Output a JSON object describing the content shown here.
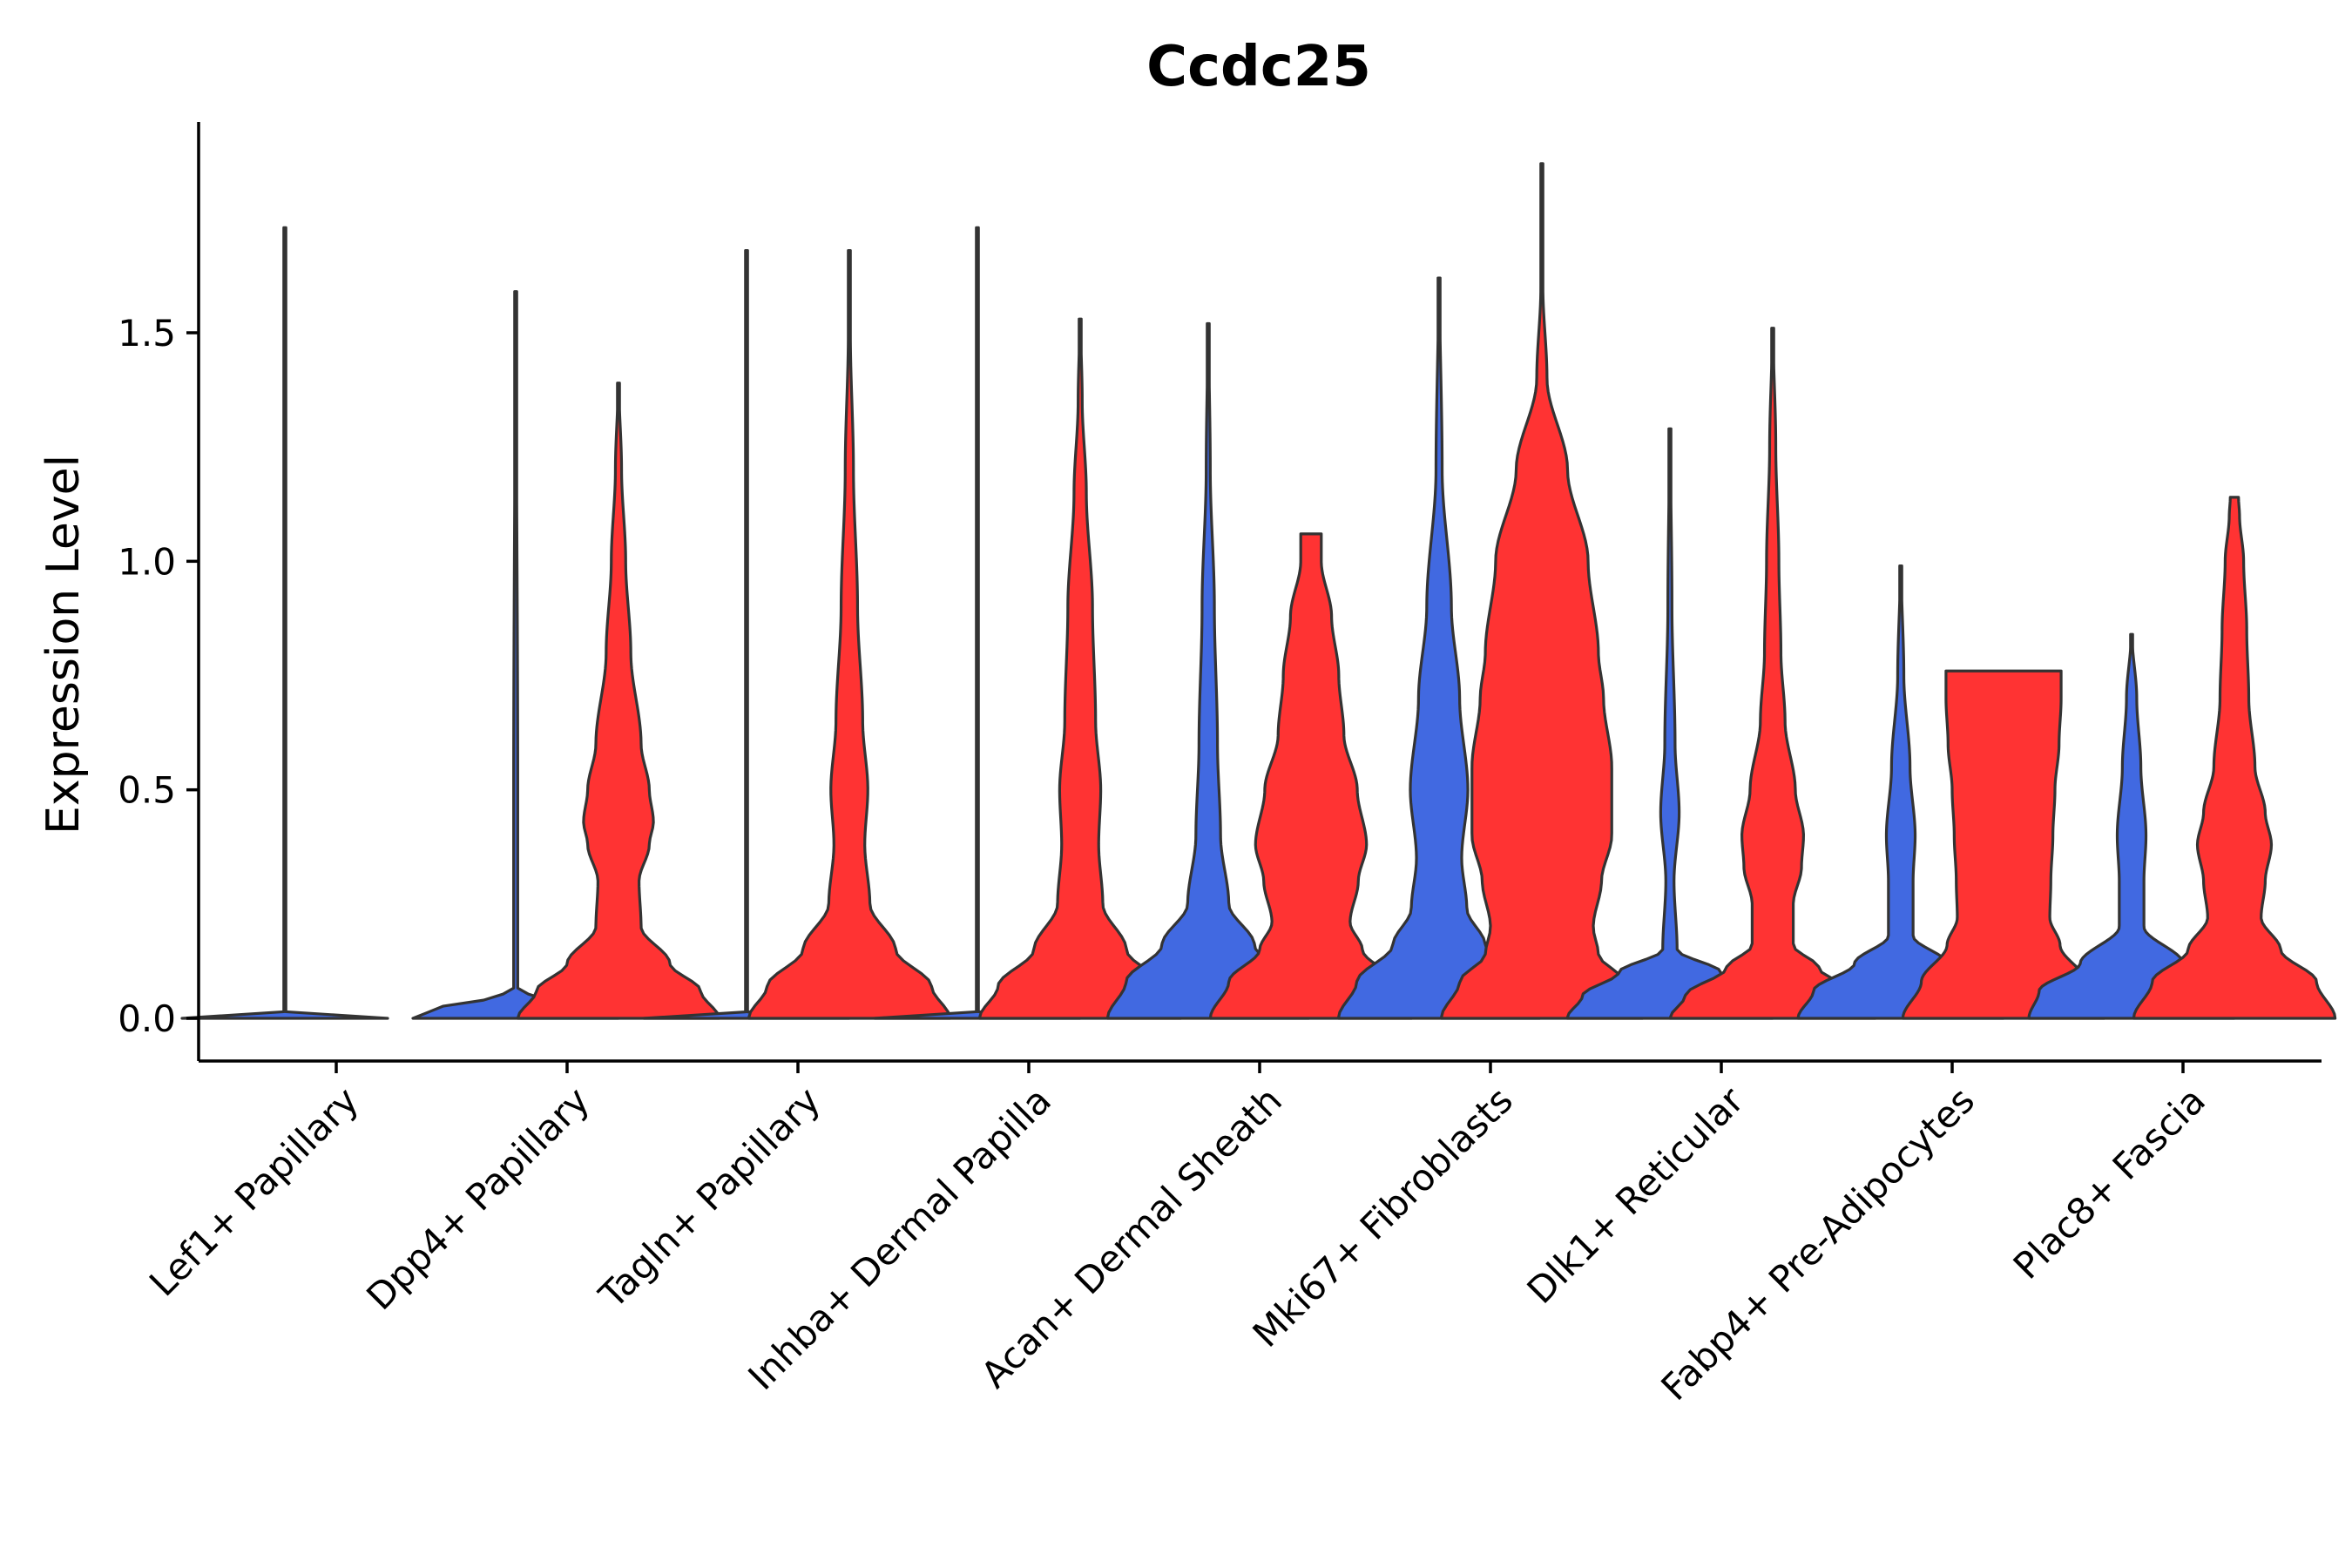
{
  "chart_data": {
    "type": "violin",
    "title": "Ccdc25",
    "xlabel": "",
    "ylabel": "Expression Level",
    "ylim": [
      -0.09,
      1.95
    ],
    "yticks": [
      0.0,
      0.5,
      1.0,
      1.5
    ],
    "ytick_labels": [
      "0.0",
      "0.5",
      "1.0",
      "1.5"
    ],
    "colors": {
      "blue_group": "#4169E1",
      "red_group": "#FF3333",
      "outline": "#333333"
    },
    "categories": [
      "Lef1+ Papillary",
      "Dpp4+ Papillary",
      "Tagln+ Papillary",
      "Inhba+ Dermal Papilla",
      "Acan+ Dermal Sheath",
      "Mki67+ Fibroblasts",
      "Dlk1+ Reticular",
      "Fabp4+ Pre-Adipocytes",
      "Plac8+ Fascia"
    ],
    "series": [
      {
        "name": "blue",
        "color": "#4169E1",
        "violins": [
          {
            "max": 1.73,
            "profile": [
              [
                0,
                1.0
              ],
              [
                0.005,
                0.25
              ],
              [
                0.01,
                0.004
              ],
              [
                1.73,
                0.004
              ]
            ]
          },
          {
            "max": 1.59,
            "profile": [
              [
                0,
                1.0
              ],
              [
                0.02,
                0.8
              ],
              [
                0.045,
                0.25
              ],
              [
                0.06,
                0.02
              ],
              [
                0.5,
                0.02
              ],
              [
                1.59,
                0.004
              ]
            ]
          },
          {
            "max": 1.68,
            "profile": [
              [
                0,
                1.0
              ],
              [
                0.005,
                0.3
              ],
              [
                0.01,
                0.004
              ],
              [
                1.68,
                0.004
              ]
            ]
          },
          {
            "max": 1.73,
            "profile": [
              [
                0,
                1.0
              ],
              [
                0.005,
                0.3
              ],
              [
                0.01,
                0.004
              ],
              [
                1.73,
                0.004
              ]
            ]
          },
          {
            "max": 1.52,
            "profile": [
              [
                0,
                0.98
              ],
              [
                0.08,
                0.8
              ],
              [
                0.16,
                0.45
              ],
              [
                0.25,
                0.2
              ],
              [
                0.4,
                0.12
              ],
              [
                0.6,
                0.09
              ],
              [
                0.9,
                0.06
              ],
              [
                1.2,
                0.02
              ],
              [
                1.52,
                0.004
              ]
            ]
          },
          {
            "max": 1.62,
            "profile": [
              [
                0,
                0.98
              ],
              [
                0.08,
                0.8
              ],
              [
                0.16,
                0.45
              ],
              [
                0.24,
                0.27
              ],
              [
                0.35,
                0.22
              ],
              [
                0.5,
                0.28
              ],
              [
                0.7,
                0.2
              ],
              [
                0.9,
                0.12
              ],
              [
                1.2,
                0.03
              ],
              [
                1.62,
                0.004
              ]
            ]
          },
          {
            "max": 1.29,
            "profile": [
              [
                0,
                1.0
              ],
              [
                0.05,
                0.85
              ],
              [
                0.1,
                0.5
              ],
              [
                0.15,
                0.07
              ],
              [
                0.3,
                0.04
              ],
              [
                0.45,
                0.09
              ],
              [
                0.6,
                0.05
              ],
              [
                0.9,
                0.02
              ],
              [
                1.29,
                0.004
              ]
            ]
          },
          {
            "max": 0.99,
            "profile": [
              [
                0,
                1.0
              ],
              [
                0.06,
                0.85
              ],
              [
                0.12,
                0.45
              ],
              [
                0.18,
                0.12
              ],
              [
                0.3,
                0.12
              ],
              [
                0.4,
                0.14
              ],
              [
                0.55,
                0.09
              ],
              [
                0.75,
                0.03
              ],
              [
                0.99,
                0.004
              ]
            ]
          },
          {
            "max": 0.84,
            "profile": [
              [
                0,
                1.0
              ],
              [
                0.06,
                0.9
              ],
              [
                0.12,
                0.5
              ],
              [
                0.2,
                0.12
              ],
              [
                0.3,
                0.12
              ],
              [
                0.4,
                0.14
              ],
              [
                0.55,
                0.09
              ],
              [
                0.7,
                0.05
              ],
              [
                0.84,
                0.004
              ]
            ]
          }
        ]
      },
      {
        "name": "red",
        "color": "#FF3333",
        "violins": [
          null,
          {
            "max": 1.39,
            "profile": [
              [
                0,
                0.98
              ],
              [
                0.06,
                0.8
              ],
              [
                0.12,
                0.5
              ],
              [
                0.2,
                0.22
              ],
              [
                0.3,
                0.2
              ],
              [
                0.38,
                0.3
              ],
              [
                0.43,
                0.34
              ],
              [
                0.5,
                0.3
              ],
              [
                0.6,
                0.22
              ],
              [
                0.8,
                0.12
              ],
              [
                1.0,
                0.07
              ],
              [
                1.2,
                0.03
              ],
              [
                1.39,
                0.004
              ]
            ]
          },
          {
            "max": 1.68,
            "profile": [
              [
                0,
                0.98
              ],
              [
                0.07,
                0.8
              ],
              [
                0.15,
                0.45
              ],
              [
                0.25,
                0.2
              ],
              [
                0.38,
                0.15
              ],
              [
                0.5,
                0.18
              ],
              [
                0.65,
                0.13
              ],
              [
                0.9,
                0.08
              ],
              [
                1.2,
                0.04
              ],
              [
                1.5,
                0.01
              ],
              [
                1.68,
                0.004
              ]
            ]
          },
          {
            "max": 1.53,
            "profile": [
              [
                0,
                0.98
              ],
              [
                0.07,
                0.8
              ],
              [
                0.15,
                0.45
              ],
              [
                0.25,
                0.22
              ],
              [
                0.38,
                0.18
              ],
              [
                0.5,
                0.2
              ],
              [
                0.65,
                0.15
              ],
              [
                0.9,
                0.12
              ],
              [
                1.15,
                0.06
              ],
              [
                1.35,
                0.02
              ],
              [
                1.53,
                0.004
              ]
            ]
          },
          {
            "max": 1.06,
            "profile": [
              [
                0,
                0.98
              ],
              [
                0.08,
                0.8
              ],
              [
                0.15,
                0.5
              ],
              [
                0.21,
                0.38
              ],
              [
                0.3,
                0.46
              ],
              [
                0.38,
                0.54
              ],
              [
                0.5,
                0.45
              ],
              [
                0.62,
                0.32
              ],
              [
                0.75,
                0.27
              ],
              [
                0.88,
                0.2
              ],
              [
                1.0,
                0.1
              ],
              [
                1.06,
                0.1
              ]
            ]
          },
          {
            "max": 1.87,
            "profile": [
              [
                0,
                0.98
              ],
              [
                0.08,
                0.8
              ],
              [
                0.14,
                0.55
              ],
              [
                0.2,
                0.5
              ],
              [
                0.3,
                0.58
              ],
              [
                0.4,
                0.68
              ],
              [
                0.55,
                0.68
              ],
              [
                0.7,
                0.6
              ],
              [
                0.8,
                0.55
              ],
              [
                1.0,
                0.45
              ],
              [
                1.2,
                0.25
              ],
              [
                1.4,
                0.05
              ],
              [
                1.6,
                0.01
              ],
              [
                1.87,
                0.004
              ]
            ]
          },
          {
            "max": 1.51,
            "profile": [
              [
                0,
                1.0
              ],
              [
                0.05,
                0.85
              ],
              [
                0.11,
                0.45
              ],
              [
                0.16,
                0.2
              ],
              [
                0.25,
                0.2
              ],
              [
                0.33,
                0.28
              ],
              [
                0.4,
                0.3
              ],
              [
                0.5,
                0.22
              ],
              [
                0.65,
                0.12
              ],
              [
                0.8,
                0.08
              ],
              [
                1.0,
                0.06
              ],
              [
                1.25,
                0.03
              ],
              [
                1.51,
                0.004
              ]
            ]
          },
          {
            "max": 0.76,
            "profile": [
              [
                0,
                0.98
              ],
              [
                0.08,
                0.8
              ],
              [
                0.16,
                0.55
              ],
              [
                0.22,
                0.45
              ],
              [
                0.3,
                0.46
              ],
              [
                0.4,
                0.48
              ],
              [
                0.5,
                0.5
              ],
              [
                0.6,
                0.54
              ],
              [
                0.7,
                0.56
              ],
              [
                0.76,
                0.56
              ]
            ]
          },
          {
            "max": 1.14,
            "profile": [
              [
                0,
                0.98
              ],
              [
                0.08,
                0.8
              ],
              [
                0.15,
                0.45
              ],
              [
                0.22,
                0.26
              ],
              [
                0.3,
                0.3
              ],
              [
                0.38,
                0.36
              ],
              [
                0.45,
                0.3
              ],
              [
                0.55,
                0.2
              ],
              [
                0.7,
                0.14
              ],
              [
                0.85,
                0.12
              ],
              [
                1.0,
                0.09
              ],
              [
                1.1,
                0.05
              ],
              [
                1.14,
                0.04
              ]
            ]
          }
        ]
      }
    ]
  }
}
